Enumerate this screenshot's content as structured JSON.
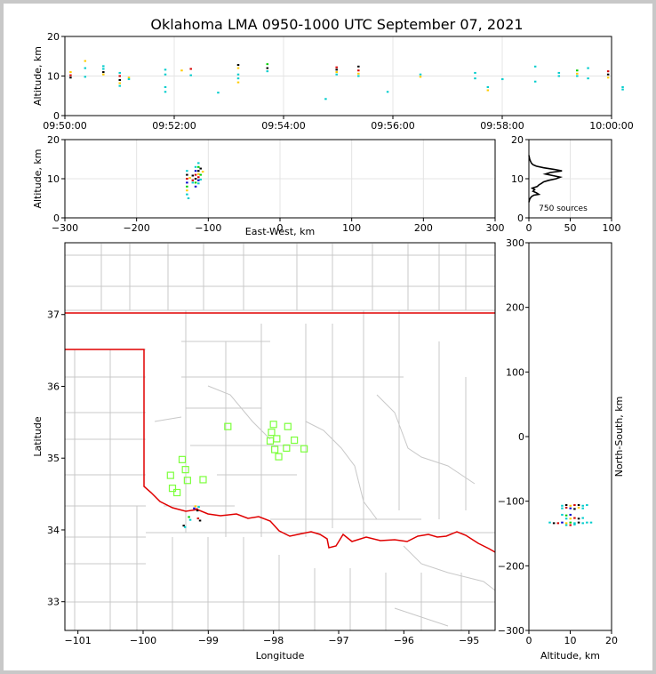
{
  "title": "Oklahoma LMA 0950-1000 UTC September 07, 2021",
  "chart_data": [
    {
      "id": "time_height",
      "type": "scatter",
      "ylabel": "Altitude, km",
      "xlim": [
        "09:50:00",
        "10:00:00"
      ],
      "ylim": [
        0,
        20
      ],
      "xticks": [
        "09:50:00",
        "09:52:00",
        "09:54:00",
        "09:56:00",
        "09:58:00",
        "10:00:00"
      ],
      "yticks": [
        "0",
        "10",
        "20"
      ],
      "grid": true,
      "points": [
        [
          "09:50:06",
          10.2,
          "#d40000"
        ],
        [
          "09:50:06",
          11.0,
          "#ffcc00"
        ],
        [
          "09:50:06",
          9.6,
          "#000000"
        ],
        [
          "09:50:22",
          13.8,
          "#ffcc00"
        ],
        [
          "09:50:22",
          12.0,
          "#00cccc"
        ],
        [
          "09:50:22",
          9.8,
          "#00cccc"
        ],
        [
          "09:50:42",
          11.8,
          "#00cccc"
        ],
        [
          "09:50:42",
          11.0,
          "#000000"
        ],
        [
          "09:50:42",
          10.4,
          "#ffcc00"
        ],
        [
          "09:50:42",
          12.5,
          "#00cccc"
        ],
        [
          "09:51:00",
          10.0,
          "#d40000"
        ],
        [
          "09:51:00",
          9.0,
          "#000000"
        ],
        [
          "09:51:00",
          8.2,
          "#ffcc00"
        ],
        [
          "09:51:00",
          10.8,
          "#00cccc"
        ],
        [
          "09:51:00",
          7.5,
          "#00cccc"
        ],
        [
          "09:51:10",
          9.6,
          "#ffcc00"
        ],
        [
          "09:51:10",
          9.2,
          "#00cccc"
        ],
        [
          "09:51:50",
          11.6,
          "#00cccc"
        ],
        [
          "09:51:50",
          10.4,
          "#00cccc"
        ],
        [
          "09:51:50",
          6.0,
          "#00cccc"
        ],
        [
          "09:51:50",
          7.2,
          "#00cccc"
        ],
        [
          "09:52:08",
          11.4,
          "#ffcc00"
        ],
        [
          "09:52:18",
          11.8,
          "#d40000"
        ],
        [
          "09:52:18",
          10.2,
          "#00cccc"
        ],
        [
          "09:52:48",
          5.8,
          "#00cccc"
        ],
        [
          "09:53:10",
          12.8,
          "#000000"
        ],
        [
          "09:53:10",
          12.0,
          "#ffcc00"
        ],
        [
          "09:53:10",
          10.4,
          "#00cccc"
        ],
        [
          "09:53:10",
          9.4,
          "#00cccc"
        ],
        [
          "09:53:10",
          8.4,
          "#ffcc00"
        ],
        [
          "09:53:42",
          13.0,
          "#00cc00"
        ],
        [
          "09:53:42",
          12.0,
          "#000000"
        ],
        [
          "09:53:42",
          11.2,
          "#00cccc"
        ],
        [
          "09:54:46",
          4.2,
          "#00cccc"
        ],
        [
          "09:54:58",
          12.2,
          "#d40000"
        ],
        [
          "09:54:58",
          11.6,
          "#000000"
        ],
        [
          "09:54:58",
          11.0,
          "#ffcc00"
        ],
        [
          "09:54:58",
          10.4,
          "#00cccc"
        ],
        [
          "09:55:22",
          12.4,
          "#000000"
        ],
        [
          "09:55:22",
          11.4,
          "#d40000"
        ],
        [
          "09:55:22",
          10.6,
          "#ffcc00"
        ],
        [
          "09:55:22",
          10.0,
          "#00cccc"
        ],
        [
          "09:55:54",
          6.0,
          "#00cccc"
        ],
        [
          "09:56:30",
          10.4,
          "#00cccc"
        ],
        [
          "09:56:30",
          9.8,
          "#ffcc00"
        ],
        [
          "09:57:30",
          10.8,
          "#00cccc"
        ],
        [
          "09:57:30",
          9.4,
          "#00cccc"
        ],
        [
          "09:57:44",
          7.2,
          "#00cccc"
        ],
        [
          "09:57:44",
          6.4,
          "#ffcc00"
        ],
        [
          "09:58:00",
          9.2,
          "#00cccc"
        ],
        [
          "09:58:36",
          12.4,
          "#00cccc"
        ],
        [
          "09:58:36",
          8.6,
          "#00cccc"
        ],
        [
          "09:59:02",
          10.8,
          "#00cccc"
        ],
        [
          "09:59:02",
          10.0,
          "#00cccc"
        ],
        [
          "09:59:22",
          11.4,
          "#00cc00"
        ],
        [
          "09:59:22",
          10.6,
          "#ffcc00"
        ],
        [
          "09:59:22",
          10.0,
          "#00cccc"
        ],
        [
          "09:59:34",
          12.0,
          "#00cccc"
        ],
        [
          "09:59:34",
          9.4,
          "#00cccc"
        ],
        [
          "09:59:56",
          11.2,
          "#d40000"
        ],
        [
          "09:59:56",
          10.4,
          "#000000"
        ],
        [
          "09:59:56",
          9.6,
          "#ffcc00"
        ],
        [
          "10:00:12",
          7.2,
          "#00cccc"
        ],
        [
          "10:00:12",
          6.6,
          "#00cccc"
        ]
      ]
    },
    {
      "id": "ew_alt",
      "type": "scatter",
      "xlabel": "East-West, km",
      "ylabel": "Altitude, km",
      "xlim": [
        -300,
        300
      ],
      "ylim": [
        0,
        20
      ],
      "xticks": [
        "−300",
        "−200",
        "−100",
        "0",
        "100",
        "200",
        "300"
      ],
      "yticks": [
        "0",
        "10",
        "20"
      ],
      "grid": true,
      "points": [
        [
          -130,
          12.0,
          "#00cccc"
        ],
        [
          -130,
          11.0,
          "#000000"
        ],
        [
          -130,
          10.0,
          "#d40000"
        ],
        [
          -130,
          9.0,
          "#0000cc"
        ],
        [
          -130,
          8.0,
          "#00cc00"
        ],
        [
          -130,
          7.0,
          "#ffcc00"
        ],
        [
          -130,
          6.0,
          "#00cccc"
        ],
        [
          -128,
          5.0,
          "#00cccc"
        ],
        [
          -126,
          10.2,
          "#ffcc00"
        ],
        [
          -122,
          10.8,
          "#000000"
        ],
        [
          -122,
          9.6,
          "#d40000"
        ],
        [
          -122,
          9.0,
          "#00cccc"
        ],
        [
          -118,
          13.0,
          "#00cccc"
        ],
        [
          -118,
          12.0,
          "#0000cc"
        ],
        [
          -118,
          11.0,
          "#d40000"
        ],
        [
          -118,
          10.0,
          "#000000"
        ],
        [
          -118,
          9.0,
          "#00cc00"
        ],
        [
          -118,
          8.0,
          "#0000cc"
        ],
        [
          -114,
          14.0,
          "#00cccc"
        ],
        [
          -114,
          13.0,
          "#00cc00"
        ],
        [
          -114,
          12.0,
          "#000000"
        ],
        [
          -114,
          11.2,
          "#ffcc00"
        ],
        [
          -114,
          10.4,
          "#d40000"
        ],
        [
          -114,
          9.6,
          "#0000cc"
        ],
        [
          -114,
          8.8,
          "#00cccc"
        ],
        [
          -111,
          12.6,
          "#000000"
        ],
        [
          -111,
          11.0,
          "#00cc00"
        ],
        [
          -111,
          9.8,
          "#00cccc"
        ],
        [
          -108,
          11.8,
          "#ffcc00"
        ]
      ]
    },
    {
      "id": "histogram",
      "type": "line",
      "annotation": "750 sources",
      "xlim": [
        0,
        100
      ],
      "ylim": [
        0,
        20
      ],
      "xticks": [
        "0",
        "50",
        "100"
      ],
      "yticks": [
        "0",
        "10",
        "20"
      ],
      "grid": true,
      "points": [
        [
          0,
          4.0
        ],
        [
          1,
          4.8
        ],
        [
          3,
          5.4
        ],
        [
          6,
          5.8
        ],
        [
          12,
          6.0
        ],
        [
          9,
          6.4
        ],
        [
          5,
          6.8
        ],
        [
          7,
          7.2
        ],
        [
          4,
          7.6
        ],
        [
          10,
          8.0
        ],
        [
          12,
          8.4
        ],
        [
          15,
          8.8
        ],
        [
          18,
          9.2
        ],
        [
          24,
          9.6
        ],
        [
          33,
          10.0
        ],
        [
          38,
          10.4
        ],
        [
          29,
          10.8
        ],
        [
          20,
          11.2
        ],
        [
          26,
          11.6
        ],
        [
          40,
          12.0
        ],
        [
          30,
          12.4
        ],
        [
          18,
          12.8
        ],
        [
          9,
          13.2
        ],
        [
          5,
          13.6
        ],
        [
          3,
          14.0
        ],
        [
          2,
          14.4
        ],
        [
          1,
          15.0
        ],
        [
          0,
          16.0
        ]
      ]
    },
    {
      "id": "plan_view",
      "type": "scatter",
      "xlabel": "Longitude",
      "ylabel": "Latitude",
      "xlim": [
        -101.2,
        -94.6
      ],
      "ylim": [
        32.6,
        38.0
      ],
      "xticks": [
        "−101",
        "−100",
        "−99",
        "−98",
        "−97",
        "−96",
        "−95"
      ],
      "yticks": [
        "33",
        "34",
        "35",
        "36",
        "37"
      ],
      "grid": false,
      "stations": [
        [
          -99.4,
          34.98
        ],
        [
          -99.58,
          34.76
        ],
        [
          -99.35,
          34.84
        ],
        [
          -99.32,
          34.69
        ],
        [
          -99.55,
          34.58
        ],
        [
          -99.48,
          34.52
        ],
        [
          -99.08,
          34.7
        ],
        [
          -98.0,
          35.47
        ],
        [
          -98.03,
          35.36
        ],
        [
          -98.05,
          35.24
        ],
        [
          -97.95,
          35.27
        ],
        [
          -98.7,
          35.44
        ],
        [
          -97.78,
          35.44
        ],
        [
          -97.68,
          35.25
        ],
        [
          -97.8,
          35.14
        ],
        [
          -97.92,
          35.02
        ],
        [
          -97.98,
          35.12
        ],
        [
          -97.53,
          35.13
        ]
      ],
      "points": [
        [
          -99.3,
          34.18,
          "#00cc00"
        ],
        [
          -99.28,
          34.14,
          "#00cccc"
        ],
        [
          -99.2,
          34.33,
          "#ffcc00"
        ],
        [
          -99.18,
          34.29,
          "#d40000"
        ],
        [
          -99.17,
          34.27,
          "#000000"
        ],
        [
          -99.22,
          34.3,
          "#0000cc"
        ],
        [
          -99.15,
          34.32,
          "#00cccc"
        ],
        [
          -99.16,
          34.16,
          "#d40000"
        ],
        [
          -99.13,
          34.13,
          "#000000"
        ],
        [
          -99.38,
          34.06,
          "#000000"
        ],
        [
          -99.36,
          34.04,
          "#00cccc"
        ]
      ]
    },
    {
      "id": "alt_ns",
      "type": "scatter",
      "xlabel": "Altitude, km",
      "ylabel": "North-South, km",
      "xlim": [
        0,
        20
      ],
      "ylim": [
        -300,
        300
      ],
      "xticks": [
        "0",
        "10",
        "20"
      ],
      "yticks": [
        "−300",
        "−200",
        "−100",
        "0",
        "100",
        "200",
        "300"
      ],
      "grid": false,
      "points": [
        [
          8,
          -107,
          "#00cccc"
        ],
        [
          9,
          -106,
          "#000000"
        ],
        [
          10,
          -107,
          "#ffcc00"
        ],
        [
          11,
          -106,
          "#d40000"
        ],
        [
          12,
          -106,
          "#000000"
        ],
        [
          13,
          -107,
          "#00cccc"
        ],
        [
          14,
          -106,
          "#00cccc"
        ],
        [
          8,
          -111,
          "#00cccc"
        ],
        [
          9,
          -110,
          "#d40000"
        ],
        [
          10,
          -111,
          "#0000cc"
        ],
        [
          11,
          -112,
          "#000000"
        ],
        [
          12,
          -110,
          "#ffcc00"
        ],
        [
          13,
          -111,
          "#00cccc"
        ],
        [
          8,
          -121,
          "#00cccc"
        ],
        [
          9,
          -122,
          "#00cc00"
        ],
        [
          10,
          -121,
          "#0000cc"
        ],
        [
          9,
          -127,
          "#00cccc"
        ],
        [
          10,
          -127,
          "#ffcc00"
        ],
        [
          11,
          -126,
          "#d40000"
        ],
        [
          12,
          -127,
          "#000000"
        ],
        [
          13,
          -126,
          "#00cccc"
        ],
        [
          5,
          -133,
          "#00cccc"
        ],
        [
          6,
          -134,
          "#000000"
        ],
        [
          7,
          -134,
          "#d40000"
        ],
        [
          8,
          -133,
          "#0000cc"
        ],
        [
          9,
          -134,
          "#ffcc00"
        ],
        [
          10,
          -133,
          "#00cc00"
        ],
        [
          11,
          -134,
          "#00cccc"
        ],
        [
          12,
          -133,
          "#000000"
        ],
        [
          13,
          -134,
          "#00cccc"
        ],
        [
          14,
          -133,
          "#00cccc"
        ],
        [
          15,
          -133,
          "#00cccc"
        ],
        [
          9,
          -137,
          "#00cccc"
        ],
        [
          10,
          -137,
          "#d40000"
        ],
        [
          11,
          -136,
          "#00cccc"
        ]
      ]
    }
  ]
}
